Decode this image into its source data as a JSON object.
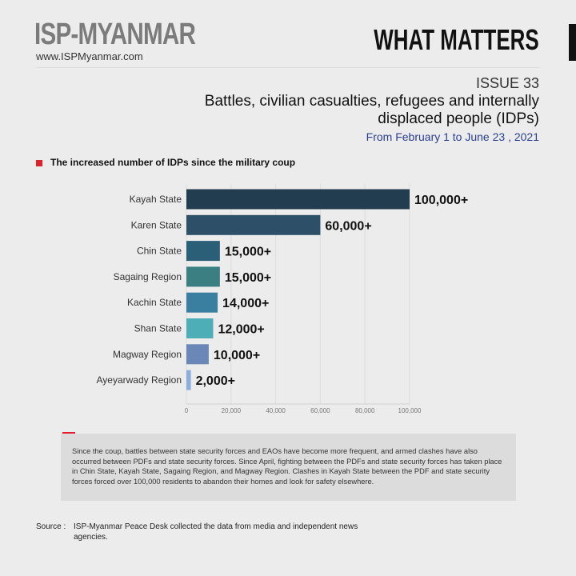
{
  "header": {
    "brand": "ISP-MYANMAR",
    "url": "www.ISPMyanmar.com",
    "section": "WHAT MATTERS"
  },
  "issue": "ISSUE 33",
  "title": "Battles, civilian casualties, refugees and internally displaced people (IDPs)",
  "dates": "From February 1 to June 23 , 2021",
  "subtitle": "The increased number of IDPs since the military coup",
  "chart_data": {
    "type": "bar",
    "orientation": "horizontal",
    "categories": [
      "Kayah State",
      "Karen State",
      "Chin State",
      "Sagaing Region",
      "Kachin State",
      "Shan State",
      "Magway Region",
      "Ayeyarwady Region"
    ],
    "values": [
      100000,
      60000,
      15000,
      15000,
      14000,
      12000,
      10000,
      2000
    ],
    "data_labels": [
      "100,000+",
      "60,000+",
      "15,000+",
      "15,000+",
      "14,000+",
      "12,000+",
      "10,000+",
      "2,000+"
    ],
    "colors": [
      "#223d50",
      "#2d5068",
      "#2b5f78",
      "#3b7f83",
      "#3b7fa0",
      "#4daeb8",
      "#6b87b7",
      "#8aaee0"
    ],
    "xlim": [
      0,
      100000
    ],
    "xticks": [
      "0",
      "20,000",
      "40,000",
      "60,000",
      "80,000",
      "100,000"
    ],
    "grid": true
  },
  "note": "Since the coup, battles between state security forces and EAOs have become more frequent, and armed clashes have also occurred between PDFs and state security forces. Since April, fighting between the PDFs and state security forces has taken place in Chin State, Kayah State, Sagaing Region, and Magway Region. Clashes in Kayah State between the PDF and state security forces forced over 100,000 residents to abandon their homes and look for safety elsewhere.",
  "source": {
    "label": "Source :",
    "text": "ISP-Myanmar Peace Desk collected the data from media and independent news agencies."
  }
}
